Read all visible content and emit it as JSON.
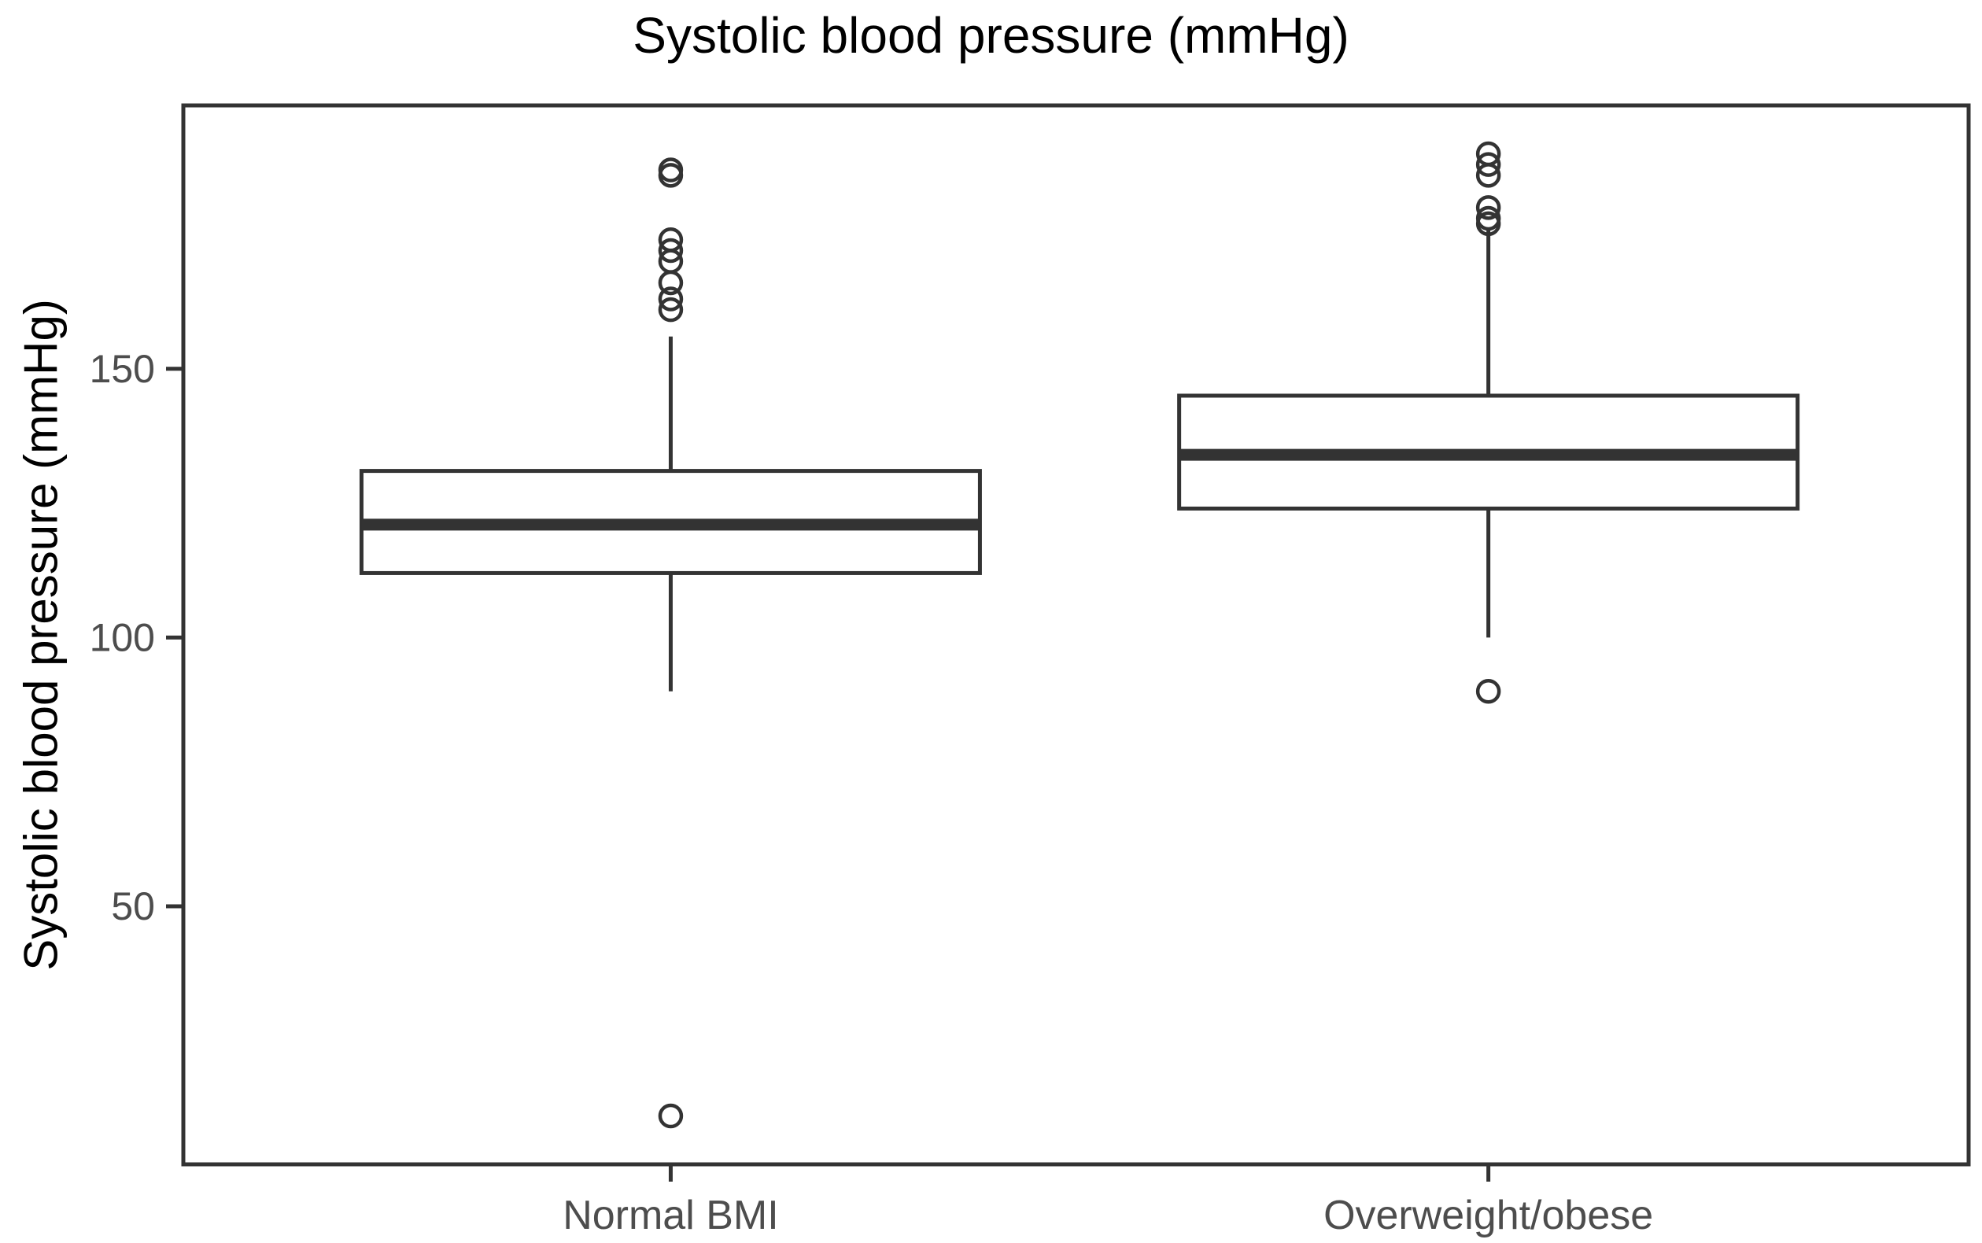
{
  "page": {
    "background": "#ffffff"
  },
  "chart_data": {
    "type": "boxplot",
    "title": "Systolic blood pressure (mmHg)",
    "ylabel": "Systolic blood pressure (mmHg)",
    "xlabel": "",
    "ylim": [
      2,
      199
    ],
    "yticks": [
      50,
      100,
      150
    ],
    "grid": false,
    "legend": "none",
    "categories": [
      "Normal BMI",
      "Overweight/obese"
    ],
    "series": [
      {
        "category": "Normal BMI",
        "whisker_low": 90,
        "q1": 112,
        "median": 121,
        "q3": 131,
        "whisker_high": 156,
        "outliers": [
          11,
          161,
          163,
          166,
          170,
          172,
          174,
          186,
          187
        ]
      },
      {
        "category": "Overweight/obese",
        "whisker_low": 100,
        "q1": 124,
        "median": 134,
        "q3": 145,
        "whisker_high": 176,
        "outliers": [
          90,
          177,
          178,
          180,
          186,
          188,
          190
        ]
      }
    ],
    "colors": {
      "box_stroke": "#333333",
      "box_fill": "#ffffff",
      "panel_border": "#333333",
      "tick_mark": "#333333",
      "tick_label": "#4d4d4d",
      "title_text": "#000000",
      "background": "#ffffff"
    }
  }
}
